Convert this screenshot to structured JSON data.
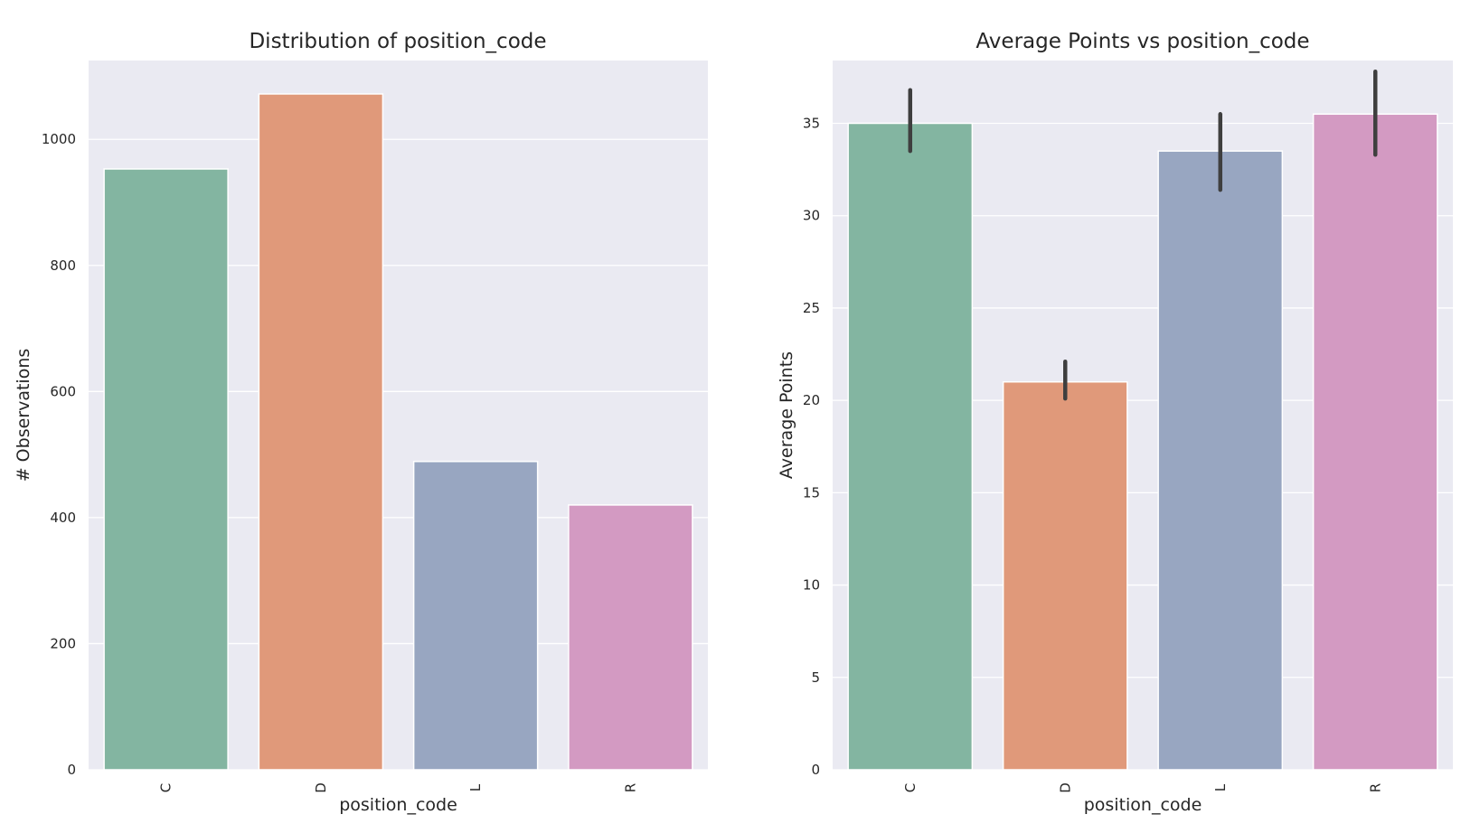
{
  "chart_data": [
    {
      "type": "bar",
      "title": "Distribution of position_code",
      "xlabel": "position_code",
      "ylabel": "# Observations",
      "categories": [
        "C",
        "D",
        "L",
        "R"
      ],
      "values": [
        953,
        1072,
        489,
        420
      ],
      "ylim": [
        0,
        1125
      ],
      "yticks": [
        0,
        200,
        400,
        600,
        800,
        1000
      ],
      "colors": [
        "#83b5a1",
        "#e0997a",
        "#98a6c1",
        "#d39ac2"
      ],
      "grid": true,
      "background": "#eaeaf2"
    },
    {
      "type": "bar",
      "title": "Average Points vs position_code",
      "xlabel": "position_code",
      "ylabel": "Average Points",
      "categories": [
        "C",
        "D",
        "L",
        "R"
      ],
      "values": [
        35.0,
        21.0,
        33.5,
        35.5
      ],
      "error_low": [
        33.5,
        20.1,
        31.4,
        33.3
      ],
      "error_high": [
        36.8,
        22.1,
        35.5,
        37.8
      ],
      "ylim": [
        0,
        38.4
      ],
      "yticks": [
        0,
        5,
        10,
        15,
        20,
        25,
        30,
        35
      ],
      "colors": [
        "#83b5a1",
        "#e0997a",
        "#98a6c1",
        "#d39ac2"
      ],
      "grid": true,
      "background": "#eaeaf2"
    }
  ]
}
